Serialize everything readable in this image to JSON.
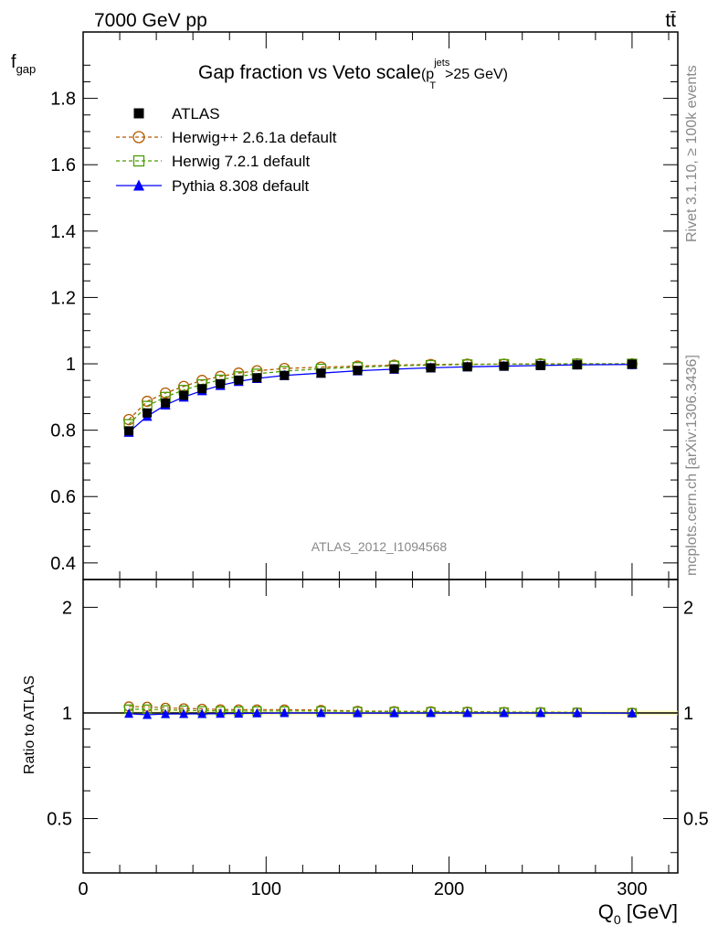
{
  "header": {
    "energy_label": "7000 GeV pp",
    "process_label": "tt̄"
  },
  "side_labels": {
    "rivet": "Rivet 3.1.10, ≥ 100k events",
    "source": "mcplots.cern.ch [arXiv:1306.3436]"
  },
  "chart_data": {
    "type": "line",
    "title": "Gap fraction vs Veto scale",
    "title_suffix": {
      "open": "(p",
      "sup": "jets",
      "sub": "T",
      "close": ">25 GeV)"
    },
    "analysis_label": "ATLAS_2012_I1094568",
    "xlabel": {
      "main": "Q",
      "sub": "0",
      "unit": " [GeV]"
    },
    "ylabel": {
      "main": "f",
      "sub": "gap"
    },
    "ratio_ylabel": "Ratio to ATLAS",
    "xlim": [
      0,
      325
    ],
    "ylim": [
      0.35,
      2.0
    ],
    "ratio_ylim": [
      0.35,
      2.4
    ],
    "x_ticks": [
      "0",
      "100",
      "200",
      "300"
    ],
    "y_ticks": [
      "0.4",
      "0.6",
      "0.8",
      "1",
      "1.2",
      "1.4",
      "1.6",
      "1.8"
    ],
    "ratio_ticks": [
      "0.5",
      "1",
      "2"
    ],
    "legend_position": "top-left",
    "x": [
      25,
      35,
      45,
      55,
      65,
      75,
      85,
      95,
      110,
      130,
      150,
      170,
      190,
      210,
      230,
      250,
      270,
      300
    ],
    "series": [
      {
        "name": "ATLAS",
        "style": "data",
        "color": "#000000",
        "marker": "filled-square",
        "values": [
          0.798,
          0.852,
          0.882,
          0.905,
          0.925,
          0.94,
          0.951,
          0.958,
          0.965,
          0.972,
          0.98,
          0.985,
          0.988,
          0.991,
          0.993,
          0.995,
          0.997,
          0.999
        ]
      },
      {
        "name": "Herwig++ 2.6.1a default",
        "style": "dashed",
        "color": "#b35a00",
        "marker": "open-circle",
        "values": [
          0.832,
          0.887,
          0.912,
          0.932,
          0.95,
          0.962,
          0.972,
          0.979,
          0.986,
          0.99,
          0.993,
          0.996,
          0.998,
          0.999,
          0.999,
          1.0,
          1.0,
          1.0
        ]
      },
      {
        "name": "Herwig 7.2.1 default",
        "style": "dashed",
        "color": "#4a9c00",
        "marker": "open-square",
        "values": [
          0.818,
          0.873,
          0.9,
          0.921,
          0.938,
          0.952,
          0.962,
          0.97,
          0.978,
          0.985,
          0.99,
          0.994,
          0.996,
          0.998,
          0.999,
          0.999,
          1.0,
          1.0
        ]
      },
      {
        "name": "Pythia 8.308 default",
        "style": "solid",
        "color": "#0000ff",
        "marker": "filled-triangle",
        "values": [
          0.794,
          0.842,
          0.876,
          0.9,
          0.919,
          0.935,
          0.947,
          0.956,
          0.965,
          0.972,
          0.979,
          0.984,
          0.988,
          0.991,
          0.993,
          0.995,
          0.997,
          0.998
        ]
      }
    ],
    "ratio_series": [
      {
        "name": "Herwig++ 2.6.1a default",
        "values": [
          1.043,
          1.041,
          1.034,
          1.03,
          1.027,
          1.023,
          1.022,
          1.022,
          1.022,
          1.019,
          1.013,
          1.011,
          1.01,
          1.008,
          1.006,
          1.005,
          1.003,
          1.001
        ]
      },
      {
        "name": "Herwig 7.2.1 default",
        "values": [
          1.025,
          1.025,
          1.02,
          1.018,
          1.014,
          1.013,
          1.012,
          1.013,
          1.013,
          1.013,
          1.01,
          1.009,
          1.008,
          1.007,
          1.006,
          1.004,
          1.003,
          1.001
        ]
      },
      {
        "name": "Pythia 8.308 default",
        "values": [
          0.995,
          0.988,
          0.993,
          0.994,
          0.994,
          0.995,
          0.996,
          0.998,
          1.0,
          1.0,
          0.999,
          0.999,
          1.0,
          1.0,
          1.0,
          1.0,
          1.0,
          0.999
        ]
      }
    ]
  }
}
